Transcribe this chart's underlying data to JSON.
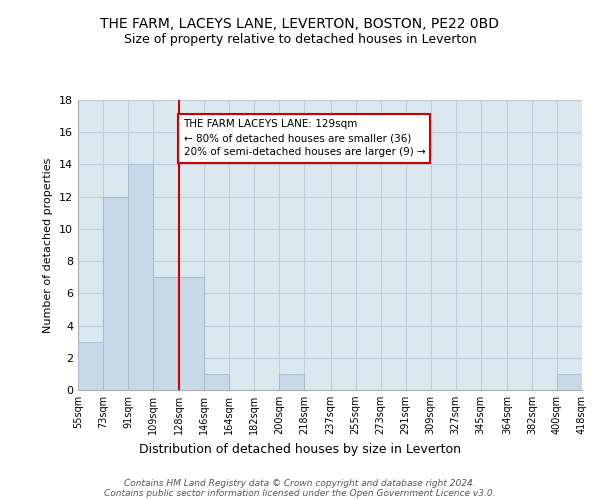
{
  "title": "THE FARM, LACEYS LANE, LEVERTON, BOSTON, PE22 0BD",
  "subtitle": "Size of property relative to detached houses in Leverton",
  "xlabel": "Distribution of detached houses by size in Leverton",
  "ylabel": "Number of detached properties",
  "bin_edges": [
    55,
    73,
    91,
    109,
    128,
    146,
    164,
    182,
    200,
    218,
    237,
    255,
    273,
    291,
    309,
    327,
    345,
    364,
    382,
    400,
    418
  ],
  "bin_labels": [
    "55sqm",
    "73sqm",
    "91sqm",
    "109sqm",
    "128sqm",
    "146sqm",
    "164sqm",
    "182sqm",
    "200sqm",
    "218sqm",
    "237sqm",
    "255sqm",
    "273sqm",
    "291sqm",
    "309sqm",
    "327sqm",
    "345sqm",
    "364sqm",
    "382sqm",
    "400sqm",
    "418sqm"
  ],
  "counts": [
    3,
    12,
    14,
    7,
    7,
    1,
    0,
    0,
    1,
    0,
    0,
    0,
    0,
    0,
    0,
    0,
    0,
    0,
    0,
    1
  ],
  "bar_color": "#c8d8e8",
  "bar_edge_color": "#aabccc",
  "vline_x": 128,
  "vline_color": "#cc0000",
  "annotation_text": "THE FARM LACEYS LANE: 129sqm\n← 80% of detached houses are smaller (36)\n20% of semi-detached houses are larger (9) →",
  "annotation_box_color": "#ffffff",
  "annotation_box_edge": "#cc0000",
  "ylim": [
    0,
    18
  ],
  "yticks": [
    0,
    2,
    4,
    6,
    8,
    10,
    12,
    14,
    16,
    18
  ],
  "background_color": "#ffffff",
  "plot_bg_color": "#dce8f0",
  "grid_color": "#c0ccd8",
  "footer_line1": "Contains HM Land Registry data © Crown copyright and database right 2024.",
  "footer_line2": "Contains public sector information licensed under the Open Government Licence v3.0."
}
